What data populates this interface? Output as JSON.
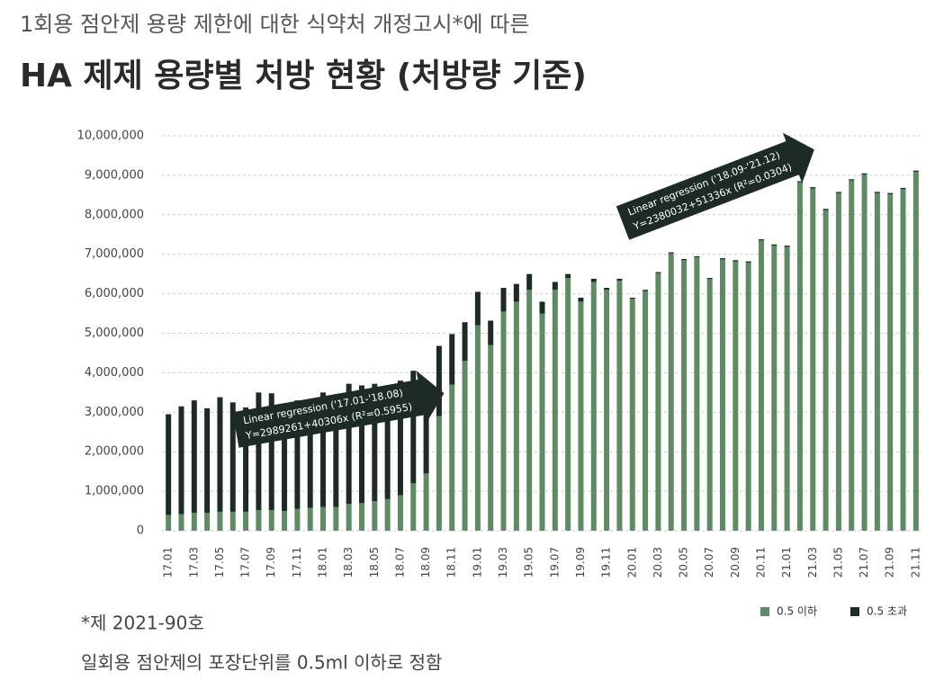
{
  "chart_data": {
    "type": "bar",
    "stacked": true,
    "subtitle": "1회용 점안제 용량 제한에 대한 식약처 개정고시*에 따른",
    "title": "HA 제제 용량별 처방 현황 (처방량 기준)",
    "notes": [
      "*제 2021-90호",
      "일회용 점안제의 포장단위를 0.5ml 이하로 정함"
    ],
    "categories": [
      "17.01",
      null,
      "17.03",
      null,
      "17.05",
      null,
      "17.07",
      null,
      "17.09",
      null,
      "17.11",
      null,
      "18.01",
      null,
      "18.03",
      null,
      "18.05",
      null,
      "18.07",
      null,
      "18.09",
      null,
      "18.11",
      null,
      "19.01",
      null,
      "19.03",
      null,
      "19.05",
      null,
      "19.07",
      null,
      "19.09",
      null,
      "19.11",
      null,
      "20.01",
      null,
      "20.03",
      null,
      "20.05",
      null,
      "20.07",
      null,
      "20.09",
      null,
      "20.11",
      null,
      "21.01",
      null,
      "21.03",
      null,
      "21.05",
      null,
      "21.07",
      null,
      "21.09",
      null,
      "21.11"
    ],
    "series": [
      {
        "name": "0.5 이하",
        "color": "#5e8a64",
        "values": [
          400000,
          420000,
          450000,
          450000,
          480000,
          480000,
          480000,
          520000,
          520000,
          500000,
          550000,
          580000,
          600000,
          600000,
          680000,
          700000,
          750000,
          800000,
          900000,
          1200000,
          1450000,
          2900000,
          3700000,
          4300000,
          5200000,
          4700000,
          5550000,
          5800000,
          6100000,
          5500000,
          6100000,
          6400000,
          5800000,
          6300000,
          6100000,
          6330000,
          5870000,
          6070000,
          6520000,
          7020000,
          6850000,
          6920000,
          6370000,
          6870000,
          6820000,
          6790000,
          7350000,
          7220000,
          7190000,
          8820000,
          8670000,
          8120000,
          8550000,
          8870000,
          9020000,
          8550000,
          8520000,
          8650000,
          9090000
        ]
      },
      {
        "name": "0.5 초과",
        "color": "#1e2b25",
        "values": [
          2550000,
          2730000,
          2850000,
          2650000,
          2900000,
          2770000,
          2640000,
          2980000,
          2960000,
          2550000,
          2750000,
          2740000,
          2900000,
          2620000,
          3040000,
          2980000,
          2970000,
          2850000,
          2900000,
          2850000,
          2300000,
          1780000,
          1280000,
          980000,
          850000,
          620000,
          600000,
          450000,
          400000,
          300000,
          200000,
          100000,
          100000,
          80000,
          50000,
          50000,
          30000,
          30000,
          30000,
          30000,
          30000,
          30000,
          30000,
          30000,
          30000,
          30000,
          30000,
          30000,
          30000,
          30000,
          30000,
          30000,
          30000,
          30000,
          30000,
          30000,
          30000,
          30000,
          30000
        ]
      }
    ],
    "ylim": [
      0,
      10000000
    ],
    "yticks": [
      0,
      {
        "value": 1000000,
        "label": "1,000,000"
      },
      {
        "value": 2000000,
        "label": "2,000,000"
      },
      {
        "value": 3000000,
        "label": "3,000,000"
      },
      {
        "value": 4000000,
        "label": "4,000,000"
      },
      {
        "value": 5000000,
        "label": "5,000,000"
      },
      {
        "value": 6000000,
        "label": "6,000,000"
      },
      {
        "value": 7000000,
        "label": "7,000,000"
      },
      {
        "value": 8000000,
        "label": "8,000,000"
      },
      {
        "value": 9000000,
        "label": "9,000,000"
      },
      {
        "value": 10000000,
        "label": "10,000,000"
      }
    ],
    "grid": true,
    "legend": "bottom-right",
    "annotations": [
      {
        "lines": [
          "Linear regression ('17.01-'18.08)",
          "Y=2989261+40306x (R²=0.5955)"
        ]
      },
      {
        "lines": [
          "Linear regression ('18.09-'21.12)",
          "Y=2380032+51336x (R²=0.0304)"
        ]
      }
    ]
  }
}
